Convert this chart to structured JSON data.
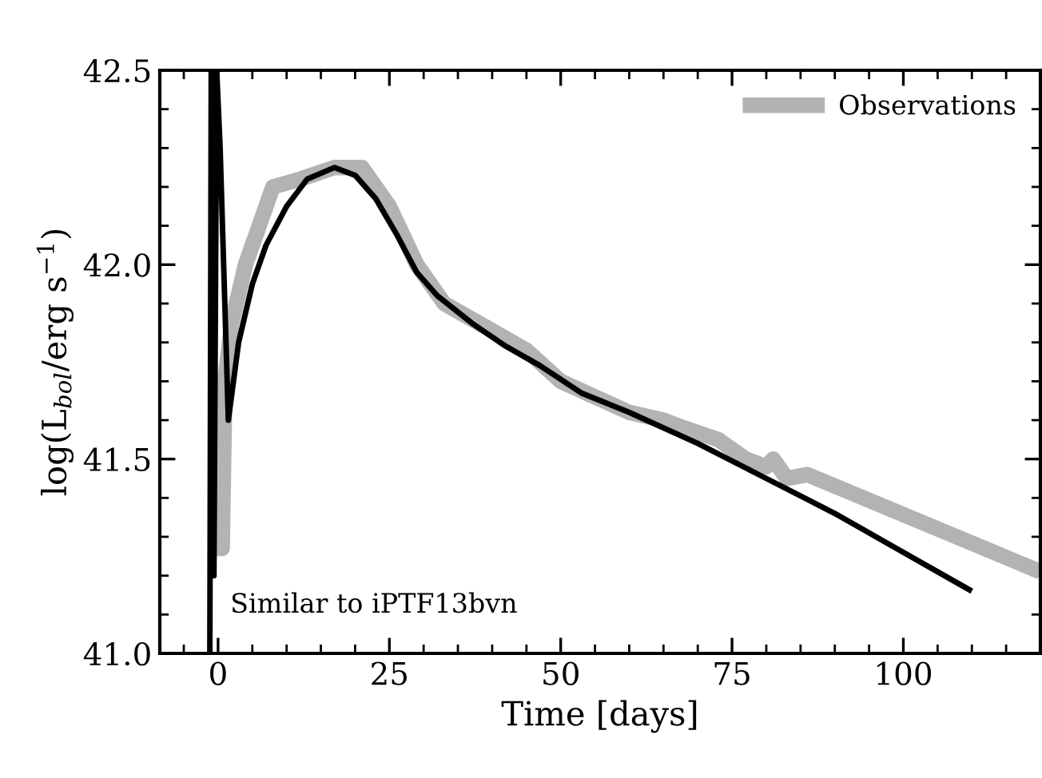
{
  "chart_data": {
    "type": "line",
    "xlabel": "Time [days]",
    "ylabel": "log(L$_{bol}$/erg s$^{−1}$)",
    "xlim": [
      -8.5,
      120
    ],
    "ylim": [
      41.0,
      42.5
    ],
    "xticks": [
      0,
      25,
      50,
      75,
      100
    ],
    "yticks": [
      {
        "value": 41.0,
        "label": "41.0"
      },
      {
        "value": 41.5,
        "label": "41.5"
      },
      {
        "value": 42.0,
        "label": "42.0"
      },
      {
        "value": 42.5,
        "label": "42.5"
      }
    ],
    "legend": "top right",
    "annotations": [
      "Similar to iPTF13bvn"
    ],
    "series": [
      {
        "name": "Observations",
        "color": "#b3b3b3",
        "x": [
          -0.6,
          0.6,
          1.0,
          2.0,
          4.0,
          6.0,
          8.0,
          12.0,
          17.0,
          21.0,
          25.0,
          29.0,
          33.0,
          40.0,
          45.0,
          50.0,
          55.0,
          60.0,
          65.0,
          68.0,
          73.0,
          77.0,
          80.0,
          81.0,
          83.0,
          86.0,
          120.0
        ],
        "values": [
          41.27,
          41.27,
          41.7,
          41.85,
          42.0,
          42.1,
          42.2,
          42.22,
          42.25,
          42.25,
          42.15,
          42.0,
          41.9,
          41.83,
          41.78,
          41.7,
          41.66,
          41.62,
          41.6,
          41.58,
          41.55,
          41.5,
          41.48,
          41.5,
          41.45,
          41.46,
          41.21
        ]
      },
      {
        "color": "#000000",
        "x": [
          -1.2,
          -1.0,
          -0.6,
          -0.2,
          0.3,
          1.5,
          3.0,
          5.0,
          7.0,
          10.0,
          13.0,
          17.0,
          20.0,
          23.0,
          26.0,
          29.0,
          32.0,
          37.0,
          42.0,
          47.0,
          53.0,
          60.0,
          70.0,
          80.0,
          90.0,
          100.0,
          110.0
        ],
        "values": [
          41.0,
          42.5,
          41.2,
          42.5,
          42.3,
          41.6,
          41.8,
          41.95,
          42.05,
          42.15,
          42.22,
          42.25,
          42.23,
          42.17,
          42.08,
          41.98,
          41.92,
          41.85,
          41.79,
          41.74,
          41.67,
          41.62,
          41.54,
          41.45,
          41.36,
          41.26,
          41.16
        ]
      }
    ]
  }
}
